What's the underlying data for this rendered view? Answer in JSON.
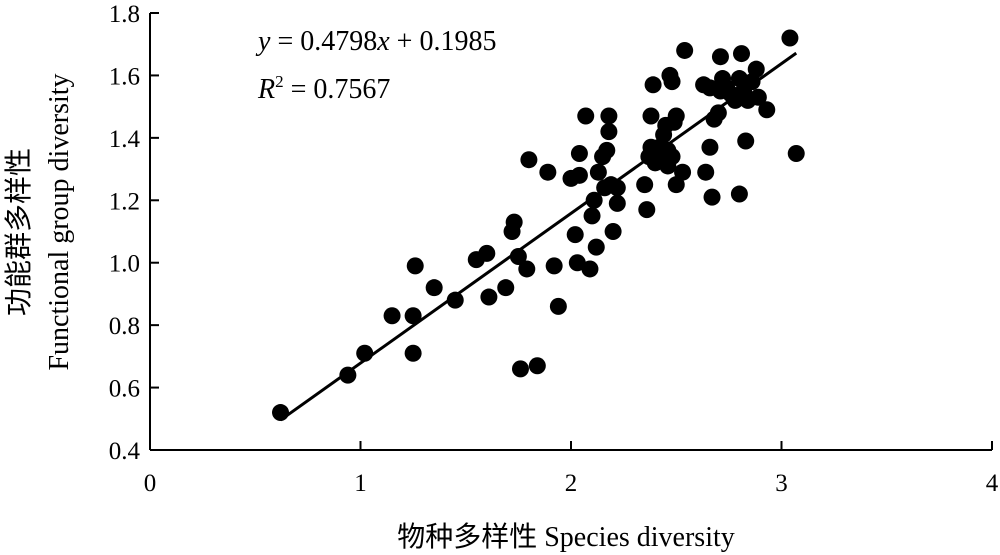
{
  "chart_data": {
    "type": "scatter",
    "xlabel": "物种多样性 Species diversity",
    "ylabel_line1": "功能群多样性",
    "ylabel_line2": "Functional group diversity",
    "xlim": [
      0,
      4
    ],
    "ylim": [
      0.4,
      1.8
    ],
    "x_ticks": [
      "0",
      "1",
      "2",
      "3",
      "4"
    ],
    "y_ticks": [
      "0.4",
      "0.6",
      "0.8",
      "1.0",
      "1.2",
      "1.4",
      "1.6",
      "1.8"
    ],
    "grid": false,
    "equation_parts": {
      "y": "y",
      "eq_rest": " = 0.4798",
      "x": "x",
      "eq_tail": " + 0.1985"
    },
    "r2_parts": {
      "R": "R",
      "sup": "2",
      "rest": " = 0.7567"
    },
    "trendline": {
      "slope": 0.4798,
      "intercept": 0.1985,
      "x_range": [
        0.62,
        3.07
      ]
    },
    "points": [
      [
        0.62,
        0.52
      ],
      [
        0.94,
        0.64
      ],
      [
        1.02,
        0.71
      ],
      [
        1.15,
        0.83
      ],
      [
        1.25,
        0.71
      ],
      [
        1.25,
        0.83
      ],
      [
        1.26,
        0.99
      ],
      [
        1.35,
        0.92
      ],
      [
        1.45,
        0.88
      ],
      [
        1.55,
        1.01
      ],
      [
        1.6,
        1.03
      ],
      [
        1.61,
        0.89
      ],
      [
        1.69,
        0.92
      ],
      [
        1.72,
        1.1
      ],
      [
        1.73,
        1.13
      ],
      [
        1.75,
        1.02
      ],
      [
        1.76,
        0.66
      ],
      [
        1.79,
        0.98
      ],
      [
        1.8,
        1.33
      ],
      [
        1.84,
        0.67
      ],
      [
        1.89,
        1.29
      ],
      [
        1.92,
        0.99
      ],
      [
        1.94,
        0.86
      ],
      [
        2.0,
        1.27
      ],
      [
        2.02,
        1.09
      ],
      [
        2.03,
        1.0
      ],
      [
        2.04,
        1.28
      ],
      [
        2.04,
        1.35
      ],
      [
        2.07,
        1.47
      ],
      [
        2.09,
        0.98
      ],
      [
        2.1,
        1.15
      ],
      [
        2.11,
        1.2
      ],
      [
        2.12,
        1.05
      ],
      [
        2.13,
        1.29
      ],
      [
        2.15,
        1.34
      ],
      [
        2.16,
        1.24
      ],
      [
        2.17,
        1.36
      ],
      [
        2.18,
        1.42
      ],
      [
        2.18,
        1.47
      ],
      [
        2.19,
        1.25
      ],
      [
        2.2,
        1.1
      ],
      [
        2.22,
        1.19
      ],
      [
        2.22,
        1.24
      ],
      [
        2.35,
        1.25
      ],
      [
        2.36,
        1.17
      ],
      [
        2.37,
        1.34
      ],
      [
        2.38,
        1.37
      ],
      [
        2.38,
        1.47
      ],
      [
        2.39,
        1.57
      ],
      [
        2.4,
        1.32
      ],
      [
        2.42,
        1.37
      ],
      [
        2.43,
        1.35
      ],
      [
        2.44,
        1.41
      ],
      [
        2.45,
        1.44
      ],
      [
        2.46,
        1.36
      ],
      [
        2.46,
        1.31
      ],
      [
        2.47,
        1.6
      ],
      [
        2.48,
        1.58
      ],
      [
        2.48,
        1.34
      ],
      [
        2.49,
        1.45
      ],
      [
        2.5,
        1.47
      ],
      [
        2.5,
        1.25
      ],
      [
        2.53,
        1.29
      ],
      [
        2.54,
        1.68
      ],
      [
        2.63,
        1.57
      ],
      [
        2.64,
        1.29
      ],
      [
        2.66,
        1.56
      ],
      [
        2.66,
        1.37
      ],
      [
        2.67,
        1.21
      ],
      [
        2.68,
        1.46
      ],
      [
        2.7,
        1.48
      ],
      [
        2.71,
        1.55
      ],
      [
        2.71,
        1.66
      ],
      [
        2.72,
        1.59
      ],
      [
        2.74,
        1.56
      ],
      [
        2.76,
        1.54
      ],
      [
        2.78,
        1.52
      ],
      [
        2.8,
        1.59
      ],
      [
        2.8,
        1.22
      ],
      [
        2.81,
        1.67
      ],
      [
        2.82,
        1.55
      ],
      [
        2.83,
        1.39
      ],
      [
        2.84,
        1.52
      ],
      [
        2.86,
        1.58
      ],
      [
        2.88,
        1.62
      ],
      [
        2.89,
        1.53
      ],
      [
        2.93,
        1.49
      ],
      [
        3.04,
        1.72
      ],
      [
        3.07,
        1.35
      ]
    ]
  }
}
